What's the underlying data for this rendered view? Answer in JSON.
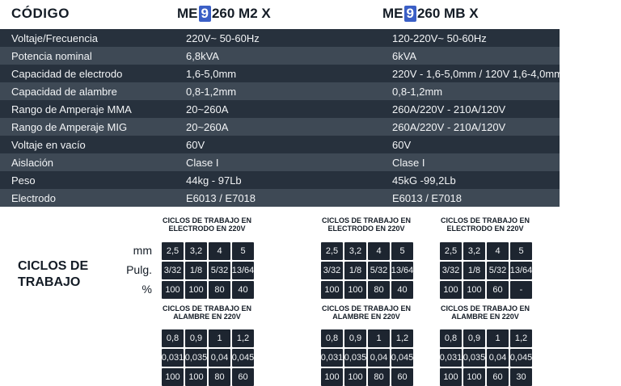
{
  "header": {
    "code_label": "CÓDIGO",
    "model1": {
      "pre": "ME",
      "hl": "9",
      "post": "260 M2 X"
    },
    "model2": {
      "pre": "ME",
      "hl": "9",
      "post": "260 MB X"
    }
  },
  "specs": [
    {
      "label": "Voltaje/Frecuencia",
      "m1": "220V~ 50-60Hz",
      "m2": "120-220V~ 50-60Hz"
    },
    {
      "label": "Potencia nominal",
      "m1": "6,8kVA",
      "m2": "6kVA"
    },
    {
      "label": "Capacidad de electrodo",
      "m1": "1,6-5,0mm",
      "m2": "220V - 1,6-5,0mm / 120V 1,6-4,0mm"
    },
    {
      "label": "Capacidad de alambre",
      "m1": "0,8-1,2mm",
      "m2": "0,8-1,2mm"
    },
    {
      "label": "Rango de Amperaje MMA",
      "m1": "20~260A",
      "m2": "260A/220V - 210A/120V"
    },
    {
      "label": "Rango de Amperaje MIG",
      "m1": "20~260A",
      "m2": "260A/220V - 210A/120V"
    },
    {
      "label": "Voltaje en vacío",
      "m1": "60V",
      "m2": "60V"
    },
    {
      "label": "Aislación",
      "m1": "Clase I",
      "m2": "Clase I"
    },
    {
      "label": "Peso",
      "m1": "44kg - 97Lb",
      "m2": "45kG -99,2Lb"
    },
    {
      "label": "Electrodo",
      "m1": "E6013 / E7018",
      "m2": "E6013 / E7018"
    }
  ],
  "duty": {
    "title_line1": "CICLOS DE",
    "title_line2": "TRABAJO",
    "row_labels": [
      "mm",
      "Pulg.",
      "%"
    ],
    "electrodo_title_line1": "CICLOS DE TRABAJO EN",
    "electrodo_title_line2": "ELECTRODO EN 220V",
    "alambre_title_line1": "CICLOS DE TRABAJO EN",
    "alambre_title_line2": "ALAMBRE EN 220V",
    "electrodo": [
      [
        [
          "2,5",
          "3,2",
          "4",
          "5"
        ],
        [
          "3/32",
          "1/8",
          "5/32",
          "13/64"
        ],
        [
          "100",
          "100",
          "80",
          "40"
        ]
      ],
      [
        [
          "2,5",
          "3,2",
          "4",
          "5"
        ],
        [
          "3/32",
          "1/8",
          "5/32",
          "13/64"
        ],
        [
          "100",
          "100",
          "80",
          "40"
        ]
      ],
      [
        [
          "2,5",
          "3,2",
          "4",
          "5"
        ],
        [
          "3/32",
          "1/8",
          "5/32",
          "13/64"
        ],
        [
          "100",
          "100",
          "60",
          "-"
        ]
      ]
    ],
    "alambre": [
      [
        [
          "0,8",
          "0,9",
          "1",
          "1,2"
        ],
        [
          "0,031",
          "0,035",
          "0,04",
          "0,045"
        ],
        [
          "100",
          "100",
          "80",
          "60"
        ]
      ],
      [
        [
          "0,8",
          "0,9",
          "1",
          "1,2"
        ],
        [
          "0,031",
          "0,035",
          "0,04",
          "0,045"
        ],
        [
          "100",
          "100",
          "80",
          "60"
        ]
      ],
      [
        [
          "0,8",
          "0,9",
          "1",
          "1,2"
        ],
        [
          "0,031",
          "0,035",
          "0,04",
          "0,045"
        ],
        [
          "100",
          "100",
          "60",
          "30"
        ]
      ]
    ]
  }
}
